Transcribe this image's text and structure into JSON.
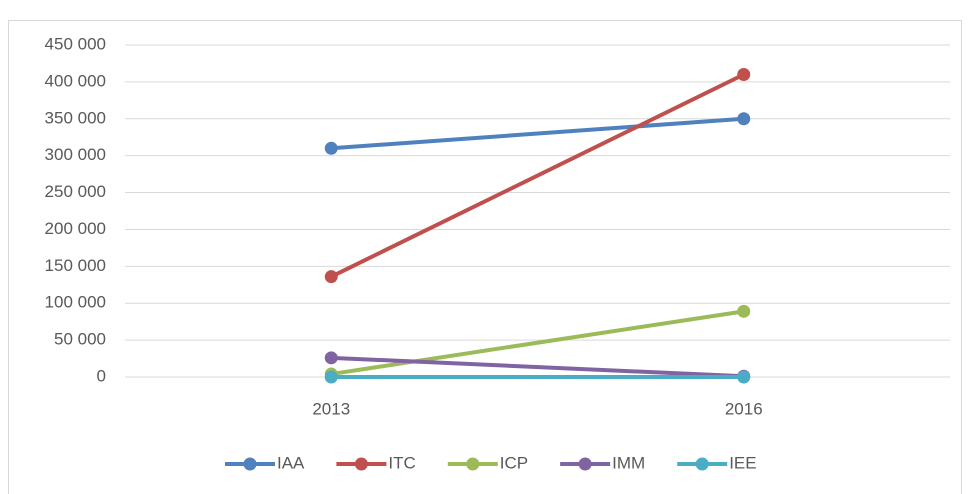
{
  "chart_data": {
    "type": "line",
    "categories": [
      "2013",
      "2016"
    ],
    "series": [
      {
        "name": "IAA",
        "color": "#4f81bd",
        "values": [
          310000,
          350000
        ]
      },
      {
        "name": "ITC",
        "color": "#c0504d",
        "values": [
          136000,
          410000
        ]
      },
      {
        "name": "ICP",
        "color": "#9bbb59",
        "values": [
          4000,
          89000
        ]
      },
      {
        "name": "IMM",
        "color": "#8064a2",
        "values": [
          26000,
          1000
        ]
      },
      {
        "name": "IEE",
        "color": "#4bacc6",
        "values": [
          0,
          0
        ]
      }
    ],
    "ylim": [
      0,
      450000
    ],
    "yticks": [
      0,
      {
        "value": 50000,
        "label": "50 000"
      },
      {
        "value": 100000,
        "label": "100 000"
      },
      {
        "value": 150000,
        "label": "150 000"
      },
      {
        "value": 200000,
        "label": "200 000"
      },
      {
        "value": 250000,
        "label": "250 000"
      },
      {
        "value": 300000,
        "label": "300 000"
      },
      {
        "value": 350000,
        "label": "350 000"
      },
      {
        "value": 400000,
        "label": "400 000"
      },
      {
        "value": 450000,
        "label": "450 000"
      }
    ],
    "grid": true,
    "legend": "bottom"
  }
}
